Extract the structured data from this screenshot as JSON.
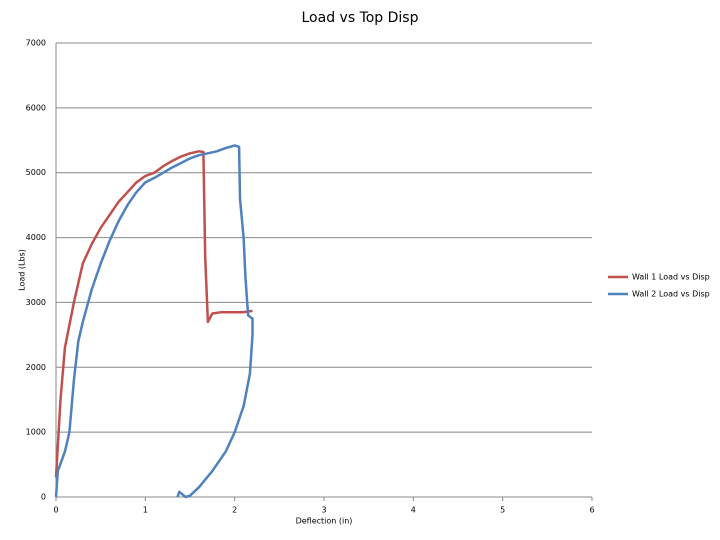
{
  "chart_data": {
    "type": "line",
    "title": "Load vs Top Disp",
    "x_label": "Deflection (in)",
    "y_label": "Load (Lbs)",
    "xlim": [
      0,
      6
    ],
    "xticks": [
      0,
      1,
      2,
      3,
      4,
      5,
      6
    ],
    "ylim": [
      0,
      7000
    ],
    "yticks": [
      0,
      1000,
      2000,
      3000,
      4000,
      5000,
      6000,
      7000
    ],
    "grid": true,
    "legend": "right",
    "series": [
      {
        "name": "Wall 1 Load vs Disp",
        "color": "#c0504d",
        "x": [
          0,
          0.05,
          0.1,
          0.2,
          0.3,
          0.4,
          0.5,
          0.6,
          0.7,
          0.8,
          0.9,
          1.0,
          1.1,
          1.2,
          1.3,
          1.4,
          1.5,
          1.6,
          1.65,
          1.67,
          1.7,
          1.75,
          1.85,
          2.0,
          2.1,
          2.2
        ],
        "values": [
          300,
          1500,
          2300,
          3000,
          3600,
          3900,
          4150,
          4350,
          4550,
          4700,
          4850,
          4950,
          5000,
          5100,
          5180,
          5250,
          5300,
          5330,
          5320,
          3700,
          2700,
          2830,
          2850,
          2850,
          2850,
          2870
        ]
      },
      {
        "name": "Wall 2 Load vs Disp",
        "color": "#4f81bd",
        "x": [
          0,
          0.02,
          0.1,
          0.15,
          0.2,
          0.25,
          0.3,
          0.4,
          0.5,
          0.6,
          0.7,
          0.8,
          0.9,
          1.0,
          1.1,
          1.2,
          1.3,
          1.4,
          1.5,
          1.6,
          1.7,
          1.8,
          1.9,
          2.0,
          2.05,
          2.06,
          2.1,
          2.12,
          2.15,
          2.2,
          2.2,
          2.17,
          2.1,
          2.0,
          1.9,
          1.75,
          1.6,
          1.5,
          1.45,
          1.38,
          1.36
        ],
        "values": [
          0,
          400,
          700,
          1000,
          1800,
          2400,
          2700,
          3200,
          3600,
          3950,
          4250,
          4500,
          4700,
          4850,
          4920,
          5000,
          5080,
          5150,
          5220,
          5270,
          5300,
          5330,
          5380,
          5420,
          5400,
          4600,
          4000,
          3400,
          2800,
          2750,
          2500,
          1900,
          1400,
          1000,
          700,
          400,
          150,
          20,
          0,
          80,
          0
        ]
      }
    ]
  }
}
